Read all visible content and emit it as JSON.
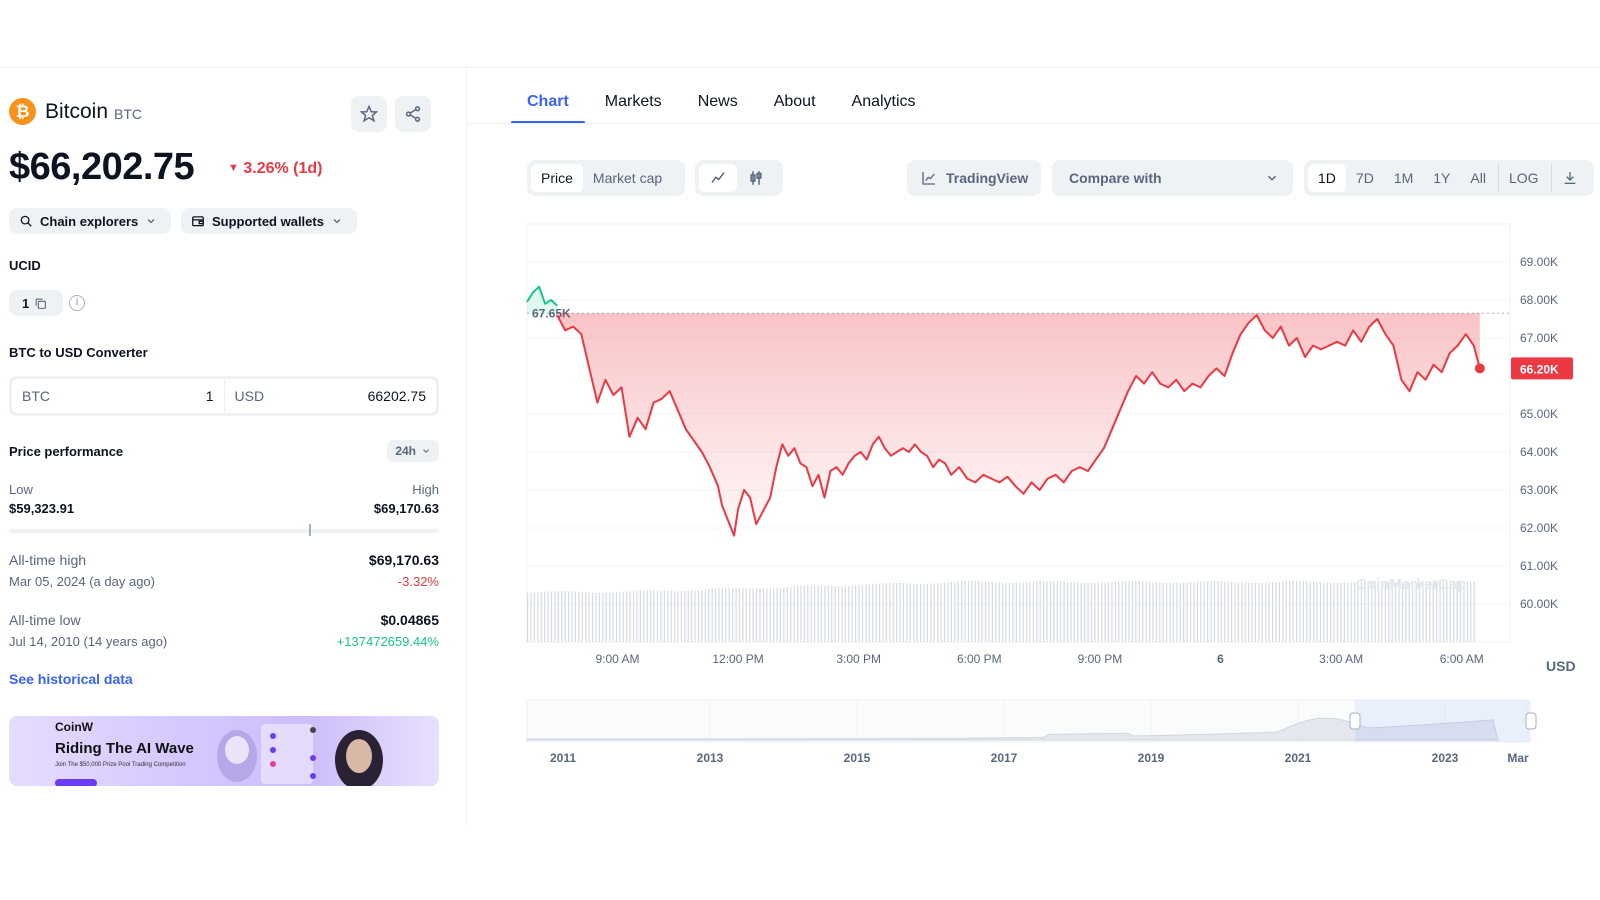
{
  "coin": {
    "name": "Bitcoin",
    "symbol": "BTC",
    "logo_glyph": "₿",
    "price": "$66,202.75",
    "change_1d": "3.26% (1d)",
    "change_direction": "down"
  },
  "links_bar": {
    "chain_explorers": "Chain explorers",
    "supported_wallets": "Supported wallets"
  },
  "ucid": {
    "label": "UCID",
    "value": "1"
  },
  "converter": {
    "title": "BTC to USD Converter",
    "from_currency": "BTC",
    "from_amount": "1",
    "to_currency": "USD",
    "to_amount": "66202.75"
  },
  "performance": {
    "title": "Price performance",
    "period": "24h",
    "low_label": "Low",
    "low_value": "$59,323.91",
    "high_label": "High",
    "high_value": "$69,170.63",
    "current_position_fraction": 0.7
  },
  "all_time_high": {
    "label": "All-time high",
    "date": "Mar 05, 2024 (a day ago)",
    "value": "$69,170.63",
    "change": "-3.32%"
  },
  "all_time_low": {
    "label": "All-time low",
    "date": "Jul 14, 2010 (14 years ago)",
    "value": "$0.04865",
    "change": "+137472659.44%"
  },
  "historical_link": "See historical data",
  "banner": {
    "brand": "CoinW",
    "title": "Riding The AI Wave",
    "subtitle": "Join The $50,000 Prize Pool Trading Competition"
  },
  "tabs": [
    "Chart",
    "Markets",
    "News",
    "About",
    "Analytics"
  ],
  "chart_toolbar": {
    "price": "Price",
    "market_cap": "Market cap",
    "trading_view": "TradingView",
    "compare_with": "Compare with",
    "ranges": [
      "1D",
      "7D",
      "1M",
      "1Y",
      "All",
      "LOG"
    ],
    "selected_range": "1D"
  },
  "colors": {
    "accent": "#3861fb",
    "down": "#ea3943",
    "up": "#16c784",
    "btc": "#f7931a"
  },
  "chart_data": {
    "type": "area",
    "currency_label": "USD",
    "reference_label": "67.65K",
    "reference_value": 67.65,
    "current_label": "66.20K",
    "current_value": 66.2,
    "y_ticks": [
      "69.00K",
      "68.00K",
      "67.00K",
      "65.00K",
      "64.00K",
      "63.00K",
      "62.00K",
      "61.00K",
      "60.00K"
    ],
    "y_tick_values": [
      69,
      68,
      67,
      65,
      64,
      63,
      62,
      61,
      60
    ],
    "ylim": [
      59.0,
      70.0
    ],
    "x_ticks": [
      "9:00 AM",
      "12:00 PM",
      "3:00 PM",
      "6:00 PM",
      "9:00 PM",
      "6",
      "3:00 AM",
      "6:00 AM"
    ],
    "x_tick_hours": [
      9,
      12,
      15,
      18,
      21,
      24,
      27,
      30
    ],
    "x_range_hours": [
      6.75,
      31.2
    ],
    "series": [
      {
        "color": "#16c784",
        "points": [
          [
            6.75,
            67.95
          ],
          [
            6.9,
            68.2
          ],
          [
            7.05,
            68.35
          ],
          [
            7.2,
            67.9
          ],
          [
            7.35,
            68.0
          ],
          [
            7.5,
            67.85
          ]
        ]
      },
      {
        "color": "#ea3943",
        "points": [
          [
            7.5,
            67.6
          ],
          [
            7.7,
            67.2
          ],
          [
            7.9,
            67.3
          ],
          [
            8.1,
            67.1
          ],
          [
            8.3,
            66.2
          ],
          [
            8.5,
            65.3
          ],
          [
            8.7,
            65.9
          ],
          [
            8.9,
            65.5
          ],
          [
            9.1,
            65.7
          ],
          [
            9.3,
            64.4
          ],
          [
            9.5,
            64.9
          ],
          [
            9.7,
            64.6
          ],
          [
            9.9,
            65.3
          ],
          [
            10.1,
            65.4
          ],
          [
            10.3,
            65.6
          ],
          [
            10.5,
            65.1
          ],
          [
            10.7,
            64.6
          ],
          [
            10.9,
            64.3
          ],
          [
            11.1,
            64.0
          ],
          [
            11.3,
            63.6
          ],
          [
            11.5,
            63.1
          ],
          [
            11.6,
            62.6
          ],
          [
            11.75,
            62.2
          ],
          [
            11.9,
            61.8
          ],
          [
            12.0,
            62.5
          ],
          [
            12.15,
            63.0
          ],
          [
            12.3,
            62.8
          ],
          [
            12.45,
            62.1
          ],
          [
            12.6,
            62.4
          ],
          [
            12.8,
            62.8
          ],
          [
            12.95,
            63.6
          ],
          [
            13.1,
            64.2
          ],
          [
            13.25,
            63.9
          ],
          [
            13.4,
            64.1
          ],
          [
            13.55,
            63.7
          ],
          [
            13.7,
            63.6
          ],
          [
            13.85,
            63.1
          ],
          [
            14.0,
            63.4
          ],
          [
            14.15,
            62.8
          ],
          [
            14.3,
            63.5
          ],
          [
            14.45,
            63.6
          ],
          [
            14.6,
            63.4
          ],
          [
            14.75,
            63.7
          ],
          [
            14.9,
            63.9
          ],
          [
            15.05,
            64.0
          ],
          [
            15.2,
            63.8
          ],
          [
            15.35,
            64.2
          ],
          [
            15.5,
            64.4
          ],
          [
            15.65,
            64.1
          ],
          [
            15.8,
            63.9
          ],
          [
            15.95,
            64.0
          ],
          [
            16.1,
            64.1
          ],
          [
            16.25,
            64.0
          ],
          [
            16.4,
            64.2
          ],
          [
            16.55,
            64.0
          ],
          [
            16.7,
            63.9
          ],
          [
            16.85,
            63.6
          ],
          [
            17.0,
            63.8
          ],
          [
            17.15,
            63.7
          ],
          [
            17.3,
            63.4
          ],
          [
            17.5,
            63.6
          ],
          [
            17.7,
            63.3
          ],
          [
            17.9,
            63.2
          ],
          [
            18.1,
            63.4
          ],
          [
            18.3,
            63.3
          ],
          [
            18.5,
            63.2
          ],
          [
            18.7,
            63.35
          ],
          [
            18.9,
            63.1
          ],
          [
            19.1,
            62.9
          ],
          [
            19.3,
            63.2
          ],
          [
            19.5,
            63.0
          ],
          [
            19.7,
            63.3
          ],
          [
            19.9,
            63.4
          ],
          [
            20.1,
            63.2
          ],
          [
            20.3,
            63.5
          ],
          [
            20.5,
            63.6
          ],
          [
            20.7,
            63.5
          ],
          [
            20.9,
            63.8
          ],
          [
            21.1,
            64.1
          ],
          [
            21.3,
            64.6
          ],
          [
            21.5,
            65.1
          ],
          [
            21.7,
            65.6
          ],
          [
            21.9,
            66.0
          ],
          [
            22.1,
            65.8
          ],
          [
            22.3,
            66.1
          ],
          [
            22.5,
            65.8
          ],
          [
            22.7,
            65.7
          ],
          [
            22.9,
            65.9
          ],
          [
            23.1,
            65.6
          ],
          [
            23.3,
            65.8
          ],
          [
            23.5,
            65.7
          ],
          [
            23.7,
            66.0
          ],
          [
            23.9,
            66.2
          ],
          [
            24.1,
            66.0
          ],
          [
            24.3,
            66.6
          ],
          [
            24.5,
            67.1
          ],
          [
            24.7,
            67.4
          ],
          [
            24.9,
            67.6
          ],
          [
            25.1,
            67.2
          ],
          [
            25.3,
            67.0
          ],
          [
            25.5,
            67.3
          ],
          [
            25.7,
            66.8
          ],
          [
            25.9,
            67.0
          ],
          [
            26.1,
            66.5
          ],
          [
            26.3,
            66.8
          ],
          [
            26.5,
            66.7
          ],
          [
            26.7,
            66.8
          ],
          [
            26.9,
            66.9
          ],
          [
            27.1,
            66.8
          ],
          [
            27.3,
            67.2
          ],
          [
            27.5,
            66.9
          ],
          [
            27.7,
            67.3
          ],
          [
            27.9,
            67.5
          ],
          [
            28.1,
            67.1
          ],
          [
            28.3,
            66.8
          ],
          [
            28.5,
            65.9
          ],
          [
            28.7,
            65.6
          ],
          [
            28.9,
            66.1
          ],
          [
            29.1,
            65.9
          ],
          [
            29.3,
            66.3
          ],
          [
            29.5,
            66.1
          ],
          [
            29.7,
            66.6
          ],
          [
            29.9,
            66.8
          ],
          [
            30.1,
            67.1
          ],
          [
            30.3,
            66.8
          ],
          [
            30.45,
            66.2
          ]
        ]
      }
    ],
    "navigator_years": [
      "2011",
      "2013",
      "2015",
      "2017",
      "2019",
      "2021",
      "2023",
      "Mar"
    ],
    "watermark": "CoinMarketCap"
  }
}
